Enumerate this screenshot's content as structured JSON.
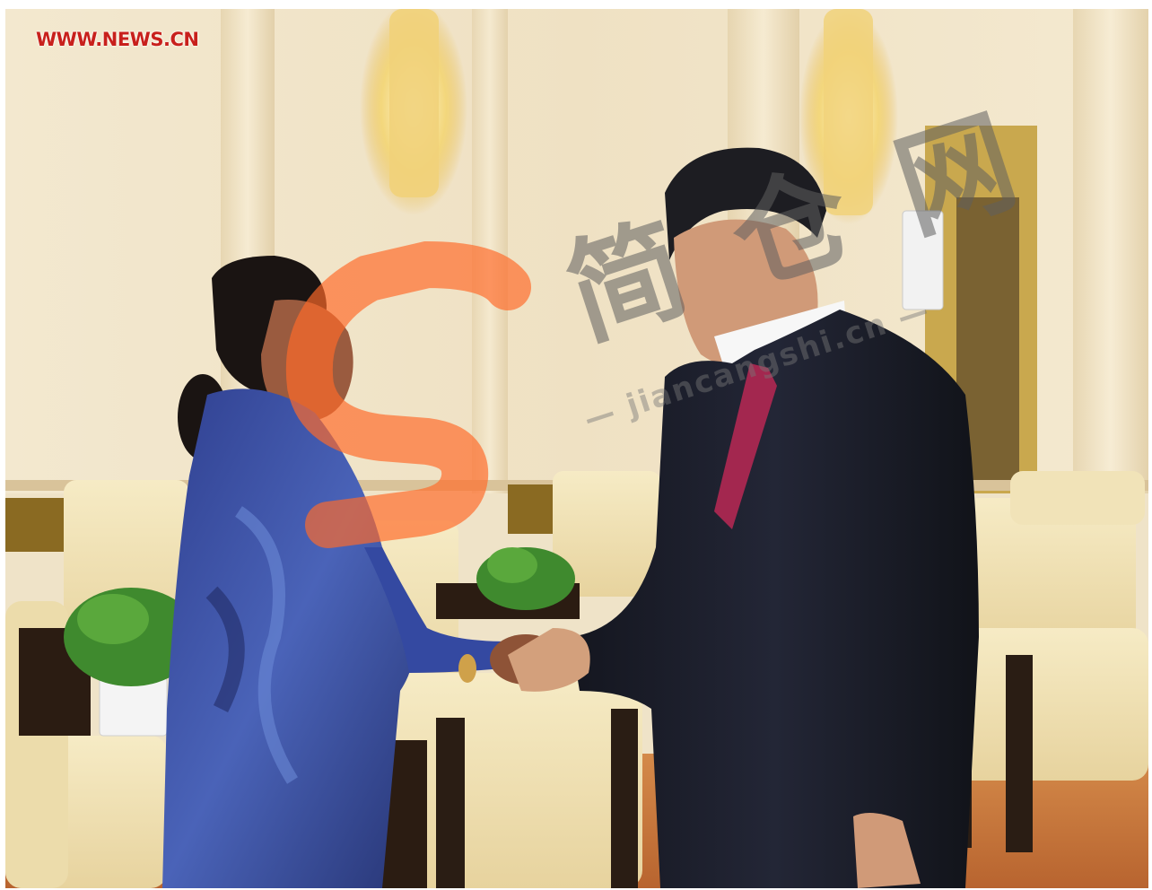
{
  "photo": {
    "source_credit": "WWW.NEWS.CN",
    "watermark": {
      "glyphs": "简 仓 网",
      "url_text": "— jiancangshi.cn —"
    }
  },
  "colors": {
    "credit_red": "#c8201c",
    "wall": "#efe3c8",
    "carpet": "#c9793e",
    "armchair": "#efe0b2",
    "suit": "#1b1e2d",
    "tie": "#a3274f",
    "jacket_blue": "#3a4fa0",
    "watermark_orange": "#ff6a2a"
  },
  "icons": [
    "watermark-s-logo"
  ]
}
